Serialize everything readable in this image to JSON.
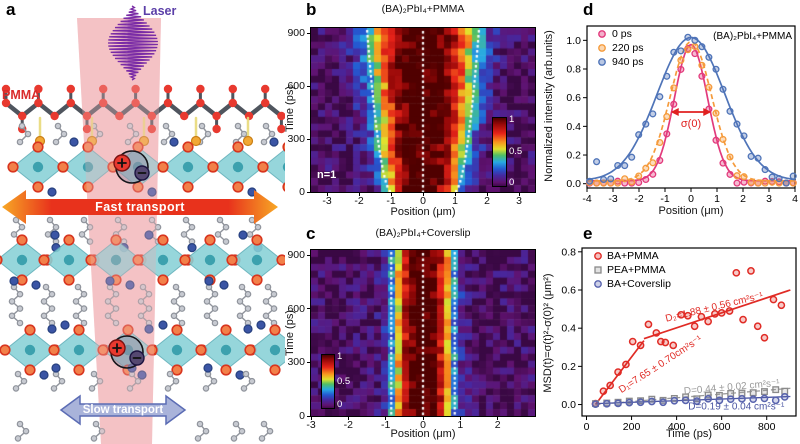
{
  "panels": {
    "a": {
      "letter": "a",
      "laser_label": "Laser",
      "pmma_label": "PMMA",
      "fast_label": "Fast transport",
      "slow_label": "Slow transport",
      "colors": {
        "beam": "#f3bcbf",
        "laser_pulse": "#7a2ca6",
        "laser_text": "#5b3fa8",
        "pmma_text": "#d92b2b",
        "fast_mid": "#e8321c",
        "fast_end": "#f7a825",
        "slow_fill": "#a9b3da",
        "slow_stroke": "#5b6cb4",
        "octahedra": "#87d0d6",
        "octahedra_core": "#2d98a6",
        "halide_fill": "#f28049",
        "halide_stroke": "#d8351f",
        "nitrogen": "#3b55a5",
        "carbon_fill": "#c7cad1",
        "carbon_stroke": "#90949c",
        "oxygen": "#e8392f",
        "bond": "#4f555e",
        "hbond": "#e8da7a",
        "ammonium": "#f2a833",
        "plus_fill": "#e8392f",
        "minus_fill": "#554871"
      }
    },
    "b": {
      "letter": "b"
    },
    "c": {
      "letter": "c"
    },
    "d": {
      "letter": "d"
    },
    "e": {
      "letter": "e"
    }
  },
  "chart_data": [
    {
      "id": "b",
      "type": "heatmap",
      "title": "(BA)₂PbI₄+PMMA",
      "xlabel": "Position (μm)",
      "ylabel": "Time (ps)",
      "annotation": "n=1",
      "x_range": [
        -3.5,
        3.5
      ],
      "y_range_ps": [
        0,
        930
      ],
      "x_ticks": [
        -3,
        -2,
        -1,
        0,
        1,
        2,
        3
      ],
      "y_ticks": [
        0,
        300,
        600,
        900
      ],
      "colorbar_ticks": [
        "1",
        "0.5",
        "0"
      ],
      "sigma_profile": {
        "w0_um": 1.0,
        "w900_um": 1.7,
        "exponent": 3
      },
      "guides_um": {
        "center": 0,
        "edge_t0": 0.95,
        "edge_t900": 1.75
      },
      "colormap": [
        [
          0.0,
          [
            58,
            8,
            68
          ]
        ],
        [
          0.06,
          [
            96,
            18,
            112
          ]
        ],
        [
          0.16,
          [
            70,
            40,
            160
          ]
        ],
        [
          0.26,
          [
            35,
            90,
            210
          ]
        ],
        [
          0.36,
          [
            40,
            170,
            228
          ]
        ],
        [
          0.46,
          [
            80,
            190,
            100
          ]
        ],
        [
          0.55,
          [
            225,
            225,
            45
          ]
        ],
        [
          0.65,
          [
            248,
            150,
            30
          ]
        ],
        [
          0.78,
          [
            230,
            35,
            25
          ]
        ],
        [
          0.92,
          [
            150,
            8,
            8
          ]
        ],
        [
          1.0,
          [
            80,
            0,
            0
          ]
        ]
      ]
    },
    {
      "id": "c",
      "type": "heatmap",
      "title": "(BA)₂PbI₄+Coverslip",
      "xlabel": "Position (μm)",
      "ylabel": "Time (ps)",
      "x_range": [
        -3,
        3
      ],
      "y_range_ps": [
        0,
        930
      ],
      "x_ticks": [
        -3,
        -2,
        -1,
        0,
        1,
        2
      ],
      "y_ticks": [
        0,
        300,
        600,
        900
      ],
      "colorbar_ticks": [
        "1",
        "0.5",
        "0"
      ],
      "sigma_profile": {
        "w0_um": 0.78,
        "w900_um": 0.78,
        "exponent": 3
      },
      "guides_um": {
        "center": 0,
        "edge_t0": 0.85,
        "edge_t900": 0.85
      }
    },
    {
      "id": "d",
      "type": "line+scatter",
      "title": "(BA)₂PbI₄+PMMA",
      "xlabel": "Position (μm)",
      "ylabel": "Normalized intensity (arb.units)",
      "x_range": [
        -4,
        4
      ],
      "x_ticks": [
        -4,
        -3,
        -2,
        -1,
        0,
        1,
        2,
        3,
        4
      ],
      "y_ticks": [
        0.0,
        0.2,
        0.4,
        0.6,
        0.8,
        1.0
      ],
      "series": [
        {
          "name": "0 ps",
          "color": "#e23a7c",
          "sigma_um": 0.64,
          "peak": 0.95,
          "scatter_noise": 0.025,
          "dash": ""
        },
        {
          "name": "220 ps",
          "color": "#f59b3c",
          "sigma_um": 0.8,
          "peak": 0.97,
          "scatter_noise": 0.035,
          "dash": "5,3"
        },
        {
          "name": "940 ps",
          "color": "#4f74b8",
          "sigma_um": 1.3,
          "peak": 1.0,
          "scatter_noise": 0.055,
          "dash": ""
        }
      ],
      "annotation": {
        "text": "σ(0)",
        "color": "#e02020",
        "arrow_x_um": [
          -0.78,
          0.78
        ],
        "arrow_y": 0.5
      }
    },
    {
      "id": "e",
      "type": "scatter",
      "xlabel": "Time (ps)",
      "ylabel": "MSD(t)=σ(t)²-σ(0)² (μm²)",
      "x_range": [
        -20,
        930
      ],
      "y_range": [
        -0.06,
        0.82
      ],
      "x_ticks": [
        0,
        200,
        400,
        600,
        800
      ],
      "y_ticks": [
        0.0,
        0.2,
        0.4,
        0.6,
        0.8
      ],
      "series": [
        {
          "name": "BA+PMMA",
          "color": "#e02b25",
          "marker": "circle",
          "points": [
            [
              40,
              0.005
            ],
            [
              75,
              0.07
            ],
            [
              105,
              0.1
            ],
            [
              140,
              0.17
            ],
            [
              175,
              0.21
            ],
            [
              205,
              0.33
            ],
            [
              240,
              0.31
            ],
            [
              275,
              0.42
            ],
            [
              310,
              0.375
            ],
            [
              330,
              0.33
            ],
            [
              350,
              0.325
            ],
            [
              385,
              0.31
            ],
            [
              420,
              0.47
            ],
            [
              450,
              0.465
            ],
            [
              480,
              0.41
            ],
            [
              510,
              0.46
            ],
            [
              540,
              0.435
            ],
            [
              570,
              0.475
            ],
            [
              600,
              0.48
            ],
            [
              635,
              0.49
            ],
            [
              665,
              0.69
            ],
            [
              695,
              0.445
            ],
            [
              730,
              0.7
            ],
            [
              760,
              0.41
            ],
            [
              790,
              0.35
            ],
            [
              830,
              0.55
            ],
            [
              865,
              0.52
            ]
          ]
        },
        {
          "name": "PEA+PMMA",
          "color": "#8a8a8a",
          "marker": "square",
          "points": [
            [
              40,
              0.005
            ],
            [
              90,
              0.008
            ],
            [
              140,
              0.012
            ],
            [
              190,
              0.018
            ],
            [
              240,
              0.02
            ],
            [
              290,
              0.028
            ],
            [
              340,
              0.022
            ],
            [
              390,
              0.032
            ],
            [
              440,
              0.04
            ],
            [
              490,
              0.03
            ],
            [
              540,
              0.05
            ],
            [
              590,
              0.048
            ],
            [
              640,
              0.058
            ],
            [
              690,
              0.06
            ],
            [
              740,
              0.062
            ],
            [
              790,
              0.068
            ],
            [
              840,
              0.078
            ],
            [
              880,
              0.07
            ]
          ]
        },
        {
          "name": "BA+Coverslip",
          "color": "#5863ae",
          "marker": "circle",
          "points": [
            [
              40,
              0.002
            ],
            [
              90,
              0.004
            ],
            [
              140,
              0.006
            ],
            [
              190,
              0.01
            ],
            [
              240,
              0.012
            ],
            [
              290,
              0.016
            ],
            [
              340,
              0.012
            ],
            [
              390,
              0.02
            ],
            [
              440,
              0.022
            ],
            [
              490,
              0.018
            ],
            [
              540,
              0.03
            ],
            [
              590,
              0.022
            ],
            [
              640,
              0.028
            ],
            [
              690,
              0.03
            ],
            [
              740,
              0.028
            ],
            [
              790,
              0.032
            ],
            [
              840,
              0.022
            ],
            [
              880,
              0.04
            ]
          ]
        }
      ],
      "fits": [
        {
          "series": "BA+PMMA",
          "color": "#e02b25",
          "style": "solid",
          "points": [
            [
              40,
              0.0
            ],
            [
              255,
              0.335
            ]
          ]
        },
        {
          "series": "BA+PMMA",
          "color": "#e02b25",
          "style": "solid",
          "points": [
            [
              255,
              0.345
            ],
            [
              905,
              0.6
            ]
          ]
        },
        {
          "series": "PEA+PMMA",
          "color": "#9a9a9a",
          "style": "dashed",
          "points": [
            [
              40,
              0.0
            ],
            [
              905,
              0.085
            ]
          ]
        },
        {
          "series": "BA+Coverslip",
          "color": "#4a55a2",
          "style": "solid",
          "points": [
            [
              40,
              0.005
            ],
            [
              905,
              0.042
            ]
          ]
        }
      ],
      "annotations": [
        {
          "text": "D₂=1.88 ± 0.56 cm²s⁻¹",
          "color": "#e02b25",
          "t": 570,
          "msd": 0.495,
          "rotate": -13.5
        },
        {
          "text": "D₁=7.65 ± 0.70cm²s⁻¹",
          "color": "#e02b25",
          "t": 335,
          "msd": 0.197,
          "rotate": -33
        },
        {
          "text": "D=0.44 ± 0.02 cm²s⁻¹",
          "color": "#9a9a9a",
          "t": 646,
          "msd": 0.076,
          "rotate": -5
        },
        {
          "text": "D=0.19 ± 0.04 cm²s⁻¹",
          "color": "#4a55a2",
          "t": 665,
          "msd": -0.025,
          "rotate": 0
        }
      ]
    }
  ]
}
